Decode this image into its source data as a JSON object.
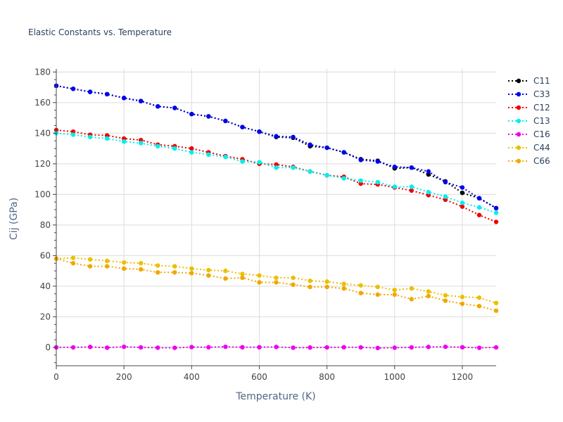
{
  "chart_data": {
    "type": "line",
    "title": "Elastic Constants vs. Temperature",
    "xlabel": "Temperature (K)",
    "ylabel": "Cij (GPa)",
    "xlim": [
      0,
      1300
    ],
    "ylim": [
      -12,
      182
    ],
    "xticks": [
      0,
      200,
      400,
      600,
      800,
      1000,
      1200
    ],
    "yticks": [
      0,
      20,
      40,
      60,
      80,
      100,
      120,
      140,
      160,
      180
    ],
    "grid": true,
    "legend_position": "top-right",
    "x": [
      0,
      50,
      100,
      150,
      200,
      250,
      300,
      350,
      400,
      450,
      500,
      550,
      600,
      650,
      700,
      750,
      800,
      850,
      900,
      950,
      1000,
      1050,
      1100,
      1150,
      1200,
      1250,
      1300
    ],
    "series": [
      {
        "name": "C11",
        "color": "#000000",
        "values": [
          171,
          169,
          167,
          165.5,
          163,
          161,
          157.5,
          156.5,
          152.5,
          151,
          148,
          144,
          141,
          137.5,
          137,
          131.5,
          130.5,
          127.5,
          123,
          122,
          117,
          117.5,
          113,
          108.5,
          101,
          97.5,
          91
        ]
      },
      {
        "name": "C33",
        "color": "#0000ee",
        "values": [
          171,
          169,
          167,
          165.5,
          163,
          161,
          157.5,
          156.5,
          152.5,
          151,
          148,
          144,
          141,
          138,
          137.5,
          132.5,
          130.5,
          127.5,
          122.5,
          121.5,
          118,
          117.5,
          115,
          108,
          104.5,
          97.5,
          91
        ]
      },
      {
        "name": "C12",
        "color": "#ee0000",
        "values": [
          142,
          141,
          139,
          138.5,
          136.5,
          135.5,
          132.5,
          131.5,
          130,
          127.5,
          125,
          123,
          120,
          119.5,
          118,
          115,
          112.5,
          111.5,
          107,
          106.5,
          104.5,
          102.5,
          99.5,
          96.5,
          92,
          86.5,
          82
        ]
      },
      {
        "name": "C13",
        "color": "#00eeee",
        "values": [
          140,
          139,
          137.5,
          136.5,
          134.5,
          133.5,
          131.5,
          130,
          127.5,
          126,
          124.5,
          121.5,
          121,
          117.5,
          117.5,
          115,
          112.5,
          110.5,
          109,
          108,
          105,
          105,
          101.5,
          98.5,
          94.5,
          91.5,
          88
        ]
      },
      {
        "name": "C16",
        "color": "#ee00ee",
        "values": [
          0,
          0,
          0.3,
          -0.2,
          0.4,
          0,
          -0.2,
          -0.3,
          0.2,
          0.1,
          0.4,
          0.1,
          0.1,
          0.3,
          -0.2,
          -0.1,
          0,
          0.1,
          0,
          -0.4,
          -0.2,
          0,
          0.3,
          0.4,
          0.1,
          -0.3,
          0
        ]
      },
      {
        "name": "C44",
        "color": "#ebc000",
        "values": [
          58,
          58.5,
          57.5,
          56.5,
          55.5,
          55,
          53.5,
          53,
          51.5,
          50.5,
          50,
          48,
          47,
          45.5,
          45.5,
          43.5,
          43,
          41.5,
          40.5,
          39.5,
          37.5,
          38.5,
          36.5,
          34,
          33,
          32.5,
          29
        ]
      },
      {
        "name": "C66",
        "color": "#f0a800",
        "values": [
          58,
          55,
          53,
          53,
          51.5,
          51,
          49,
          49,
          48.5,
          47,
          45,
          45.5,
          42.5,
          42.5,
          41,
          39.5,
          39.5,
          38.5,
          35.5,
          34.5,
          34.5,
          31.5,
          33.5,
          30.5,
          28.5,
          27,
          24
        ]
      }
    ]
  }
}
